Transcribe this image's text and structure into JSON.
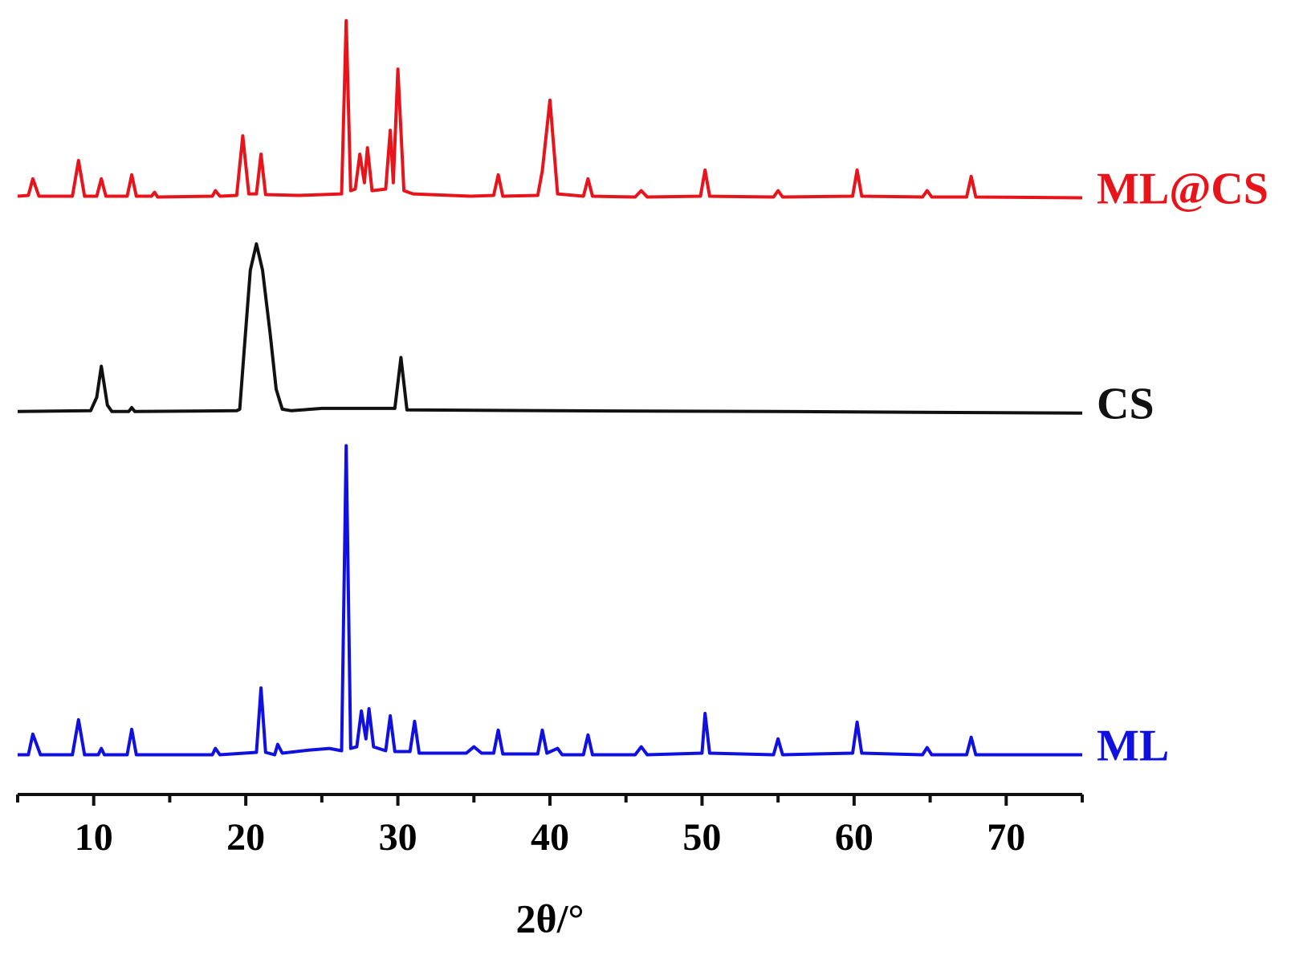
{
  "chart_data": {
    "type": "line",
    "x_label": "2θ/°",
    "xlim": [
      5,
      75
    ],
    "xticks": [
      10,
      20,
      30,
      40,
      50,
      60,
      70
    ],
    "xminor_ticks": [
      5,
      15,
      25,
      35,
      45,
      55,
      65,
      75
    ],
    "ylim": [
      0,
      100
    ],
    "series": [
      {
        "name": "ML@CS",
        "color": "#e8141b",
        "x": [
          5,
          5.7,
          6,
          6.4,
          8.6,
          9,
          9.4,
          10.2,
          10.5,
          10.8,
          12.2,
          12.5,
          12.8,
          13.8,
          14,
          14.2,
          17.8,
          18,
          18.3,
          19.4,
          19.8,
          20.2,
          20.7,
          21,
          21.3,
          23.5,
          26.3,
          26.6,
          26.9,
          27.2,
          27.5,
          27.8,
          28,
          28.3,
          29.2,
          29.5,
          29.7,
          30,
          30.4,
          31,
          34.8,
          36.3,
          36.6,
          36.9,
          39.2,
          39.5,
          40,
          40.5,
          42.2,
          42.5,
          42.8,
          45.6,
          46,
          46.4,
          49.9,
          50.2,
          50.5,
          54.7,
          55,
          55.3,
          59.9,
          60.2,
          60.5,
          64.5,
          64.8,
          65.1,
          67.4,
          67.7,
          68,
          75
        ],
        "values": [
          75.3,
          75.4,
          77.5,
          75.3,
          75.3,
          79.8,
          75.3,
          75.3,
          77.5,
          75.3,
          75.3,
          78,
          75.3,
          75.3,
          75.8,
          75.2,
          75.3,
          76,
          75.3,
          75.4,
          82.9,
          75.6,
          75.6,
          80.6,
          75.5,
          75.4,
          75.6,
          97.4,
          76,
          76.2,
          80.6,
          77,
          81.4,
          76,
          76.2,
          83.6,
          77,
          91.3,
          76,
          75.6,
          75.3,
          75.4,
          78,
          75.3,
          75.4,
          78.5,
          87.4,
          75.6,
          75.3,
          77.5,
          75.3,
          75.2,
          76,
          75.2,
          75.3,
          78.6,
          75.3,
          75.2,
          76,
          75.2,
          75.3,
          78.6,
          75.3,
          75.2,
          76,
          75.2,
          75.2,
          77.8,
          75.2,
          75.1
        ]
      },
      {
        "name": "CS",
        "color": "#111111",
        "x": [
          5,
          9.8,
          10.2,
          10.5,
          10.9,
          11.2,
          12.3,
          12.5,
          12.7,
          19.4,
          19.6,
          19.9,
          20.3,
          20.7,
          21.1,
          21.6,
          22,
          22.4,
          23,
          25,
          29.8,
          30.2,
          30.6,
          40,
          55,
          75
        ],
        "values": [
          48.2,
          48.3,
          50,
          53.9,
          49,
          48.2,
          48.2,
          48.7,
          48.2,
          48.3,
          48.5,
          56,
          66,
          69.3,
          66,
          58,
          51,
          48.5,
          48.3,
          48.6,
          48.6,
          55,
          48.4,
          48.3,
          48.2,
          48
        ]
      },
      {
        "name": "ML",
        "color": "#1010e0",
        "x": [
          5,
          5.7,
          6,
          6.5,
          8.6,
          9,
          9.4,
          10.3,
          10.5,
          10.7,
          12.2,
          12.5,
          12.8,
          17.8,
          18,
          18.3,
          20.7,
          21,
          21.3,
          21.9,
          22.1,
          22.4,
          24.2,
          25.5,
          26.3,
          26.6,
          26.9,
          27.3,
          27.6,
          27.9,
          28.1,
          28.4,
          29.2,
          29.5,
          29.8,
          30.8,
          31.1,
          31.4,
          34.5,
          35,
          35.5,
          36.3,
          36.6,
          36.9,
          39.2,
          39.5,
          39.8,
          40.5,
          40.8,
          42.2,
          42.5,
          42.8,
          45.6,
          46,
          46.4,
          50,
          50.2,
          50.5,
          54.7,
          55,
          55.3,
          59.9,
          60.2,
          60.5,
          64.5,
          64.8,
          65.1,
          67.4,
          67.7,
          68,
          75
        ],
        "values": [
          5,
          5,
          7.6,
          5,
          5,
          9.4,
          5,
          5,
          5.8,
          5,
          5,
          8.2,
          5,
          5,
          5.8,
          5,
          5.3,
          13.4,
          5.3,
          5,
          6.3,
          5.2,
          5.6,
          5.8,
          5.5,
          43.9,
          5.8,
          6,
          10.5,
          7,
          10.8,
          6,
          5.5,
          9.9,
          5.4,
          5.4,
          9.2,
          5.2,
          5.2,
          6,
          5.2,
          5.2,
          8.1,
          5.1,
          5.1,
          8.1,
          5.2,
          5.8,
          5,
          5,
          7.5,
          5,
          5,
          6,
          5,
          5.2,
          10.2,
          5.2,
          5,
          7,
          5,
          5.2,
          9.1,
          5.2,
          5,
          5.9,
          5,
          5,
          7.2,
          5,
          5
        ]
      }
    ]
  }
}
